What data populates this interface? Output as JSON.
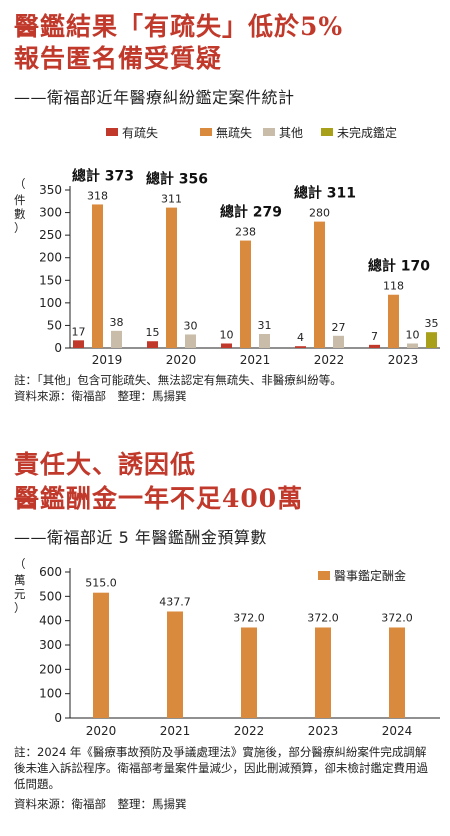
{
  "section1": {
    "title_line1": "醫鑑結果「有疏失」低於5%",
    "title_line2": "報告匿名備受質疑",
    "subtitle": "——衛福部近年醫療糾紛鑑定案件統計",
    "note": "註：「其他」包含可能疏失、無法認定有無疏失、非醫療糾紛等。",
    "source": "資料來源：衛福部　整理：馬揚巽"
  },
  "section2": {
    "title_line1": "責任大、誘因低",
    "title_line2": "醫鑑酬金一年不足400萬",
    "subtitle": "——衛福部近 5 年醫鑑酬金預算數",
    "note": "註：2024 年《醫療事故預防及爭議處理法》實施後，部分醫療糾紛案件完成調解後未進入訴訟程序。衛福部考量案件量減少，因此刪減預算，卻未檢討鑑定費用過低問題。",
    "source": "資料來源：衛福部　整理：馬揚巽"
  },
  "chart_data": [
    {
      "type": "bar",
      "categories": [
        "2019",
        "2020",
        "2021",
        "2022",
        "2023"
      ],
      "series": [
        {
          "name": "有疏失",
          "color": "#c0392b",
          "values": [
            17,
            15,
            10,
            4,
            7
          ]
        },
        {
          "name": "無疏失",
          "color": "#d98a3d",
          "values": [
            318,
            311,
            238,
            280,
            118
          ]
        },
        {
          "name": "其他",
          "color": "#c9bda9",
          "values": [
            38,
            30,
            31,
            27,
            10
          ]
        },
        {
          "name": "未完成鑑定",
          "color": "#a8a018",
          "values": [
            null,
            null,
            null,
            null,
            35
          ]
        }
      ],
      "totals": [
        "總計 373",
        "總計 356",
        "總計 279",
        "總計 311",
        "總計 170"
      ],
      "ylabel": "件數",
      "yticks": [
        0,
        50,
        100,
        150,
        200,
        250,
        300,
        350
      ],
      "ylim": [
        0,
        350
      ],
      "legend": "top-right",
      "grid": false
    },
    {
      "type": "bar",
      "categories": [
        "2020",
        "2021",
        "2022",
        "2023",
        "2024"
      ],
      "series": [
        {
          "name": "醫事鑑定酬金",
          "color": "#d98a3d",
          "values": [
            515.0,
            437.7,
            372.0,
            372.0,
            372.0
          ]
        }
      ],
      "value_labels": [
        "515.0",
        "437.7",
        "372.0",
        "372.0",
        "372.0"
      ],
      "ylabel": "萬元",
      "yticks": [
        0,
        100,
        200,
        300,
        400,
        500,
        600
      ],
      "ylim": [
        0,
        600
      ],
      "legend": "top-right",
      "grid": false
    }
  ]
}
